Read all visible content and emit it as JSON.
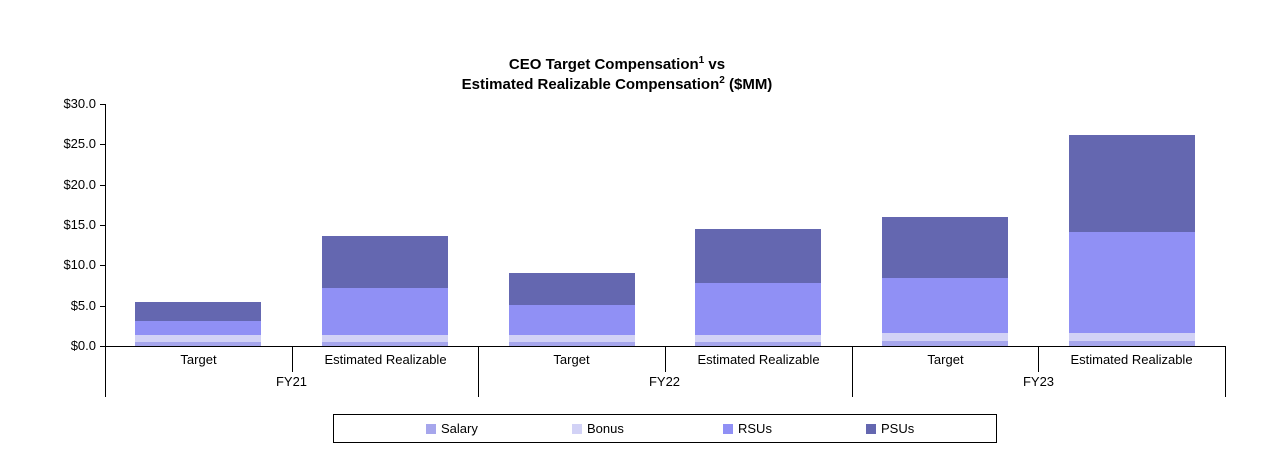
{
  "chart_data": {
    "type": "bar",
    "stacked": true,
    "title": {
      "line1": {
        "text": "CEO Target Compensation",
        "sup": "1",
        "tail": " vs"
      },
      "line2": {
        "text": "Estimated Realizable Compensation",
        "sup": "2",
        "tail": " ($MM)"
      }
    },
    "y_axis": {
      "min": 0,
      "max": 30,
      "ticks": [
        {
          "value": 0,
          "label": "$0.0"
        },
        {
          "value": 5,
          "label": "$5.0"
        },
        {
          "value": 10,
          "label": "$10.0"
        },
        {
          "value": 15,
          "label": "$15.0"
        },
        {
          "value": 20,
          "label": "$20.0"
        },
        {
          "value": 25,
          "label": "$25.0"
        },
        {
          "value": 30,
          "label": "$30.0"
        }
      ]
    },
    "x_axis": {
      "groups": [
        {
          "label": "FY21",
          "categories": [
            "Target",
            "Estimated Realizable"
          ]
        },
        {
          "label": "FY22",
          "categories": [
            "Target",
            "Estimated Realizable"
          ]
        },
        {
          "label": "FY23",
          "categories": [
            "Target",
            "Estimated Realizable"
          ]
        }
      ]
    },
    "bar_labels": [
      "FY21 Target",
      "FY21 Estimated Realizable",
      "FY22 Target",
      "FY22 Estimated Realizable",
      "FY23 Target",
      "FY23 Estimated Realizable"
    ],
    "series": [
      {
        "name": "Salary",
        "color": "#A6A6EC",
        "values": [
          0.5,
          0.5,
          0.5,
          0.5,
          0.6,
          0.6
        ]
      },
      {
        "name": "Bonus",
        "color": "#D2D2F6",
        "values": [
          0.9,
          0.9,
          0.9,
          0.9,
          1.0,
          1.0
        ]
      },
      {
        "name": "RSUs",
        "color": "#9090F5",
        "values": [
          1.8,
          5.8,
          3.7,
          6.4,
          6.9,
          12.5
        ]
      },
      {
        "name": "PSUs",
        "color": "#6467B0",
        "values": [
          2.3,
          6.4,
          4.0,
          6.7,
          7.5,
          12.0
        ]
      }
    ],
    "totals": [
      5.5,
      13.6,
      9.1,
      14.5,
      16.0,
      26.1
    ],
    "legend": {
      "position": "bottom",
      "items": [
        "Salary",
        "Bonus",
        "RSUs",
        "PSUs"
      ]
    },
    "grid": false,
    "axis_color": "#000000",
    "background_color": "#FFFFFF"
  }
}
